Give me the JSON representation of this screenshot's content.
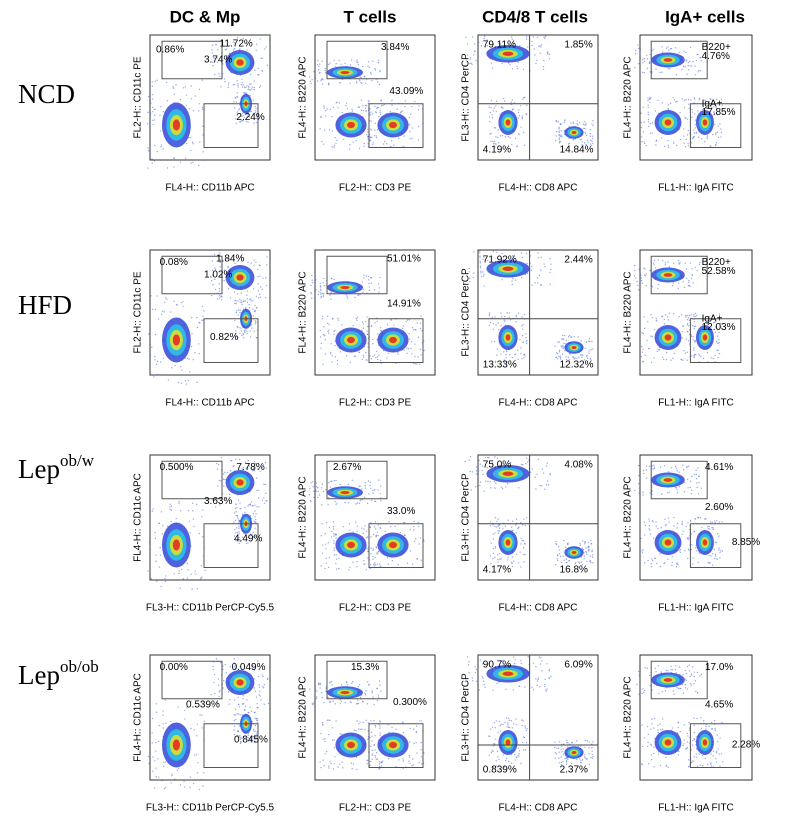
{
  "columns": [
    "DC & Mp",
    "T cells",
    "CD4/8 T cells",
    "IgA+ cells"
  ],
  "rows": [
    {
      "label": "NCD",
      "panels": [
        {
          "ylabel": "FL2-H:: CD11c PE",
          "xlabel": "FL4-H:: CD11b APC",
          "gates": [
            "0.86%",
            "11.72%",
            "3.74%",
            "2.24%"
          ]
        },
        {
          "ylabel": "FL4-H:: B220 APC",
          "xlabel": "FL2-H:: CD3 PE",
          "gates": [
            "3.84%",
            "43.09%"
          ]
        },
        {
          "ylabel": "FL3-H:: CD4 PerCP",
          "xlabel": "FL4-H:: CD8 APC",
          "gates": [
            "79.11%",
            "1.85%",
            "4.19%",
            "14.84%"
          ]
        },
        {
          "ylabel": "FL4-H:: B220 APC",
          "xlabel": "FL1-H:: IgA FITC",
          "gates": [
            "B220+",
            "4.76%",
            "IgA+",
            "17.85%"
          ]
        }
      ]
    },
    {
      "label": "HFD",
      "panels": [
        {
          "ylabel": "FL2-H:: CD11c PE",
          "xlabel": "FL4-H:: CD11b APC",
          "gates": [
            "0.08%",
            "1.84%",
            "1.02%",
            "0.82%"
          ]
        },
        {
          "ylabel": "FL4-H:: B220 APC",
          "xlabel": "FL2-H:: CD3 PE",
          "gates": [
            "51.01%",
            "14.91%"
          ]
        },
        {
          "ylabel": "FL3-H:: CD4 PerCP",
          "xlabel": "FL4-H:: CD8 APC",
          "gates": [
            "71.92%",
            "2.44%",
            "13.33%",
            "12.32%"
          ]
        },
        {
          "ylabel": "FL4-H:: B220 APC",
          "xlabel": "FL1-H:: IgA FITC",
          "gates": [
            "B220+",
            "52.58%",
            "IgA+",
            "12.03%"
          ]
        }
      ]
    },
    {
      "label": "Lep",
      "superscript": "ob/w",
      "panels": [
        {
          "ylabel": "FL4-H:: CD11c APC",
          "xlabel": "FL3-H:: CD11b PerCP-Cy5.5",
          "gates": [
            "0.500%",
            "7.78%",
            "3.63%",
            "4.49%"
          ]
        },
        {
          "ylabel": "FL4-H:: B220 APC",
          "xlabel": "FL2-H:: CD3 PE",
          "gates": [
            "2.67%",
            "33.0%"
          ]
        },
        {
          "ylabel": "FL3-H:: CD4 PerCP",
          "xlabel": "FL4-H:: CD8 APC",
          "gates": [
            "75.0%",
            "4.08%",
            "4.17%",
            "16.8%"
          ]
        },
        {
          "ylabel": "FL4-H:: B220 APC",
          "xlabel": "FL1-H:: IgA FITC",
          "gates": [
            "4.61%",
            "2.60%",
            "8.85%"
          ]
        }
      ]
    },
    {
      "label": "Lep",
      "superscript": "ob/ob",
      "panels": [
        {
          "ylabel": "FL4-H:: CD11c APC",
          "xlabel": "FL3-H:: CD11b PerCP-Cy5.5",
          "gates": [
            "0.00%",
            "0.049%",
            "0.539%",
            "0.845%"
          ]
        },
        {
          "ylabel": "FL4-H:: B220 APC",
          "xlabel": "FL2-H:: CD3 PE",
          "gates": [
            "15.3%",
            "0.300%"
          ]
        },
        {
          "ylabel": "FL3-H:: CD4 PerCP",
          "xlabel": "FL4-H:: CD8 APC",
          "gates": [
            "90.7%",
            "6.09%",
            "0.839%",
            "2.37%"
          ]
        },
        {
          "ylabel": "FL4-H:: B220 APC",
          "xlabel": "FL1-H:: IgA FITC",
          "gates": [
            "17.0%",
            "4.65%",
            "2.28%"
          ]
        }
      ]
    }
  ]
}
